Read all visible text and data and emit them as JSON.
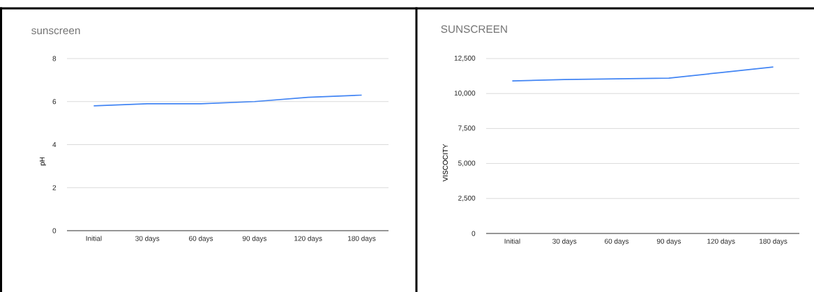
{
  "chart_data": [
    {
      "type": "line",
      "title": "sunscreen",
      "ylabel": "pH",
      "categories": [
        "Initial",
        "30 days",
        "60 days",
        "90 days",
        "120 days",
        "180 days"
      ],
      "series": [
        {
          "color": "#4285f4",
          "values": [
            5.8,
            5.9,
            5.9,
            6.0,
            6.2,
            6.3
          ]
        }
      ],
      "ylim": [
        0,
        8
      ],
      "yticks": [
        0,
        2,
        4,
        6,
        8
      ],
      "grid": "y"
    },
    {
      "type": "line",
      "title": "SUNSCREEN",
      "ylabel": "VISCOCITY",
      "categories": [
        "Initial",
        "30 days",
        "60 days",
        "90 days",
        "120 days",
        "180 days"
      ],
      "series": [
        {
          "color": "#4285f4",
          "values": [
            10900,
            11000,
            11050,
            11100,
            11500,
            11900
          ]
        }
      ],
      "ylim": [
        0,
        12500
      ],
      "yticks": [
        0,
        {
          "value": 2500,
          "label": "2,500"
        },
        {
          "value": 5000,
          "label": "5,000"
        },
        {
          "value": 7500,
          "label": "7,500"
        },
        {
          "value": 10000,
          "label": "10,000"
        },
        {
          "value": 12500,
          "label": "12,500"
        }
      ],
      "grid": "y"
    }
  ]
}
